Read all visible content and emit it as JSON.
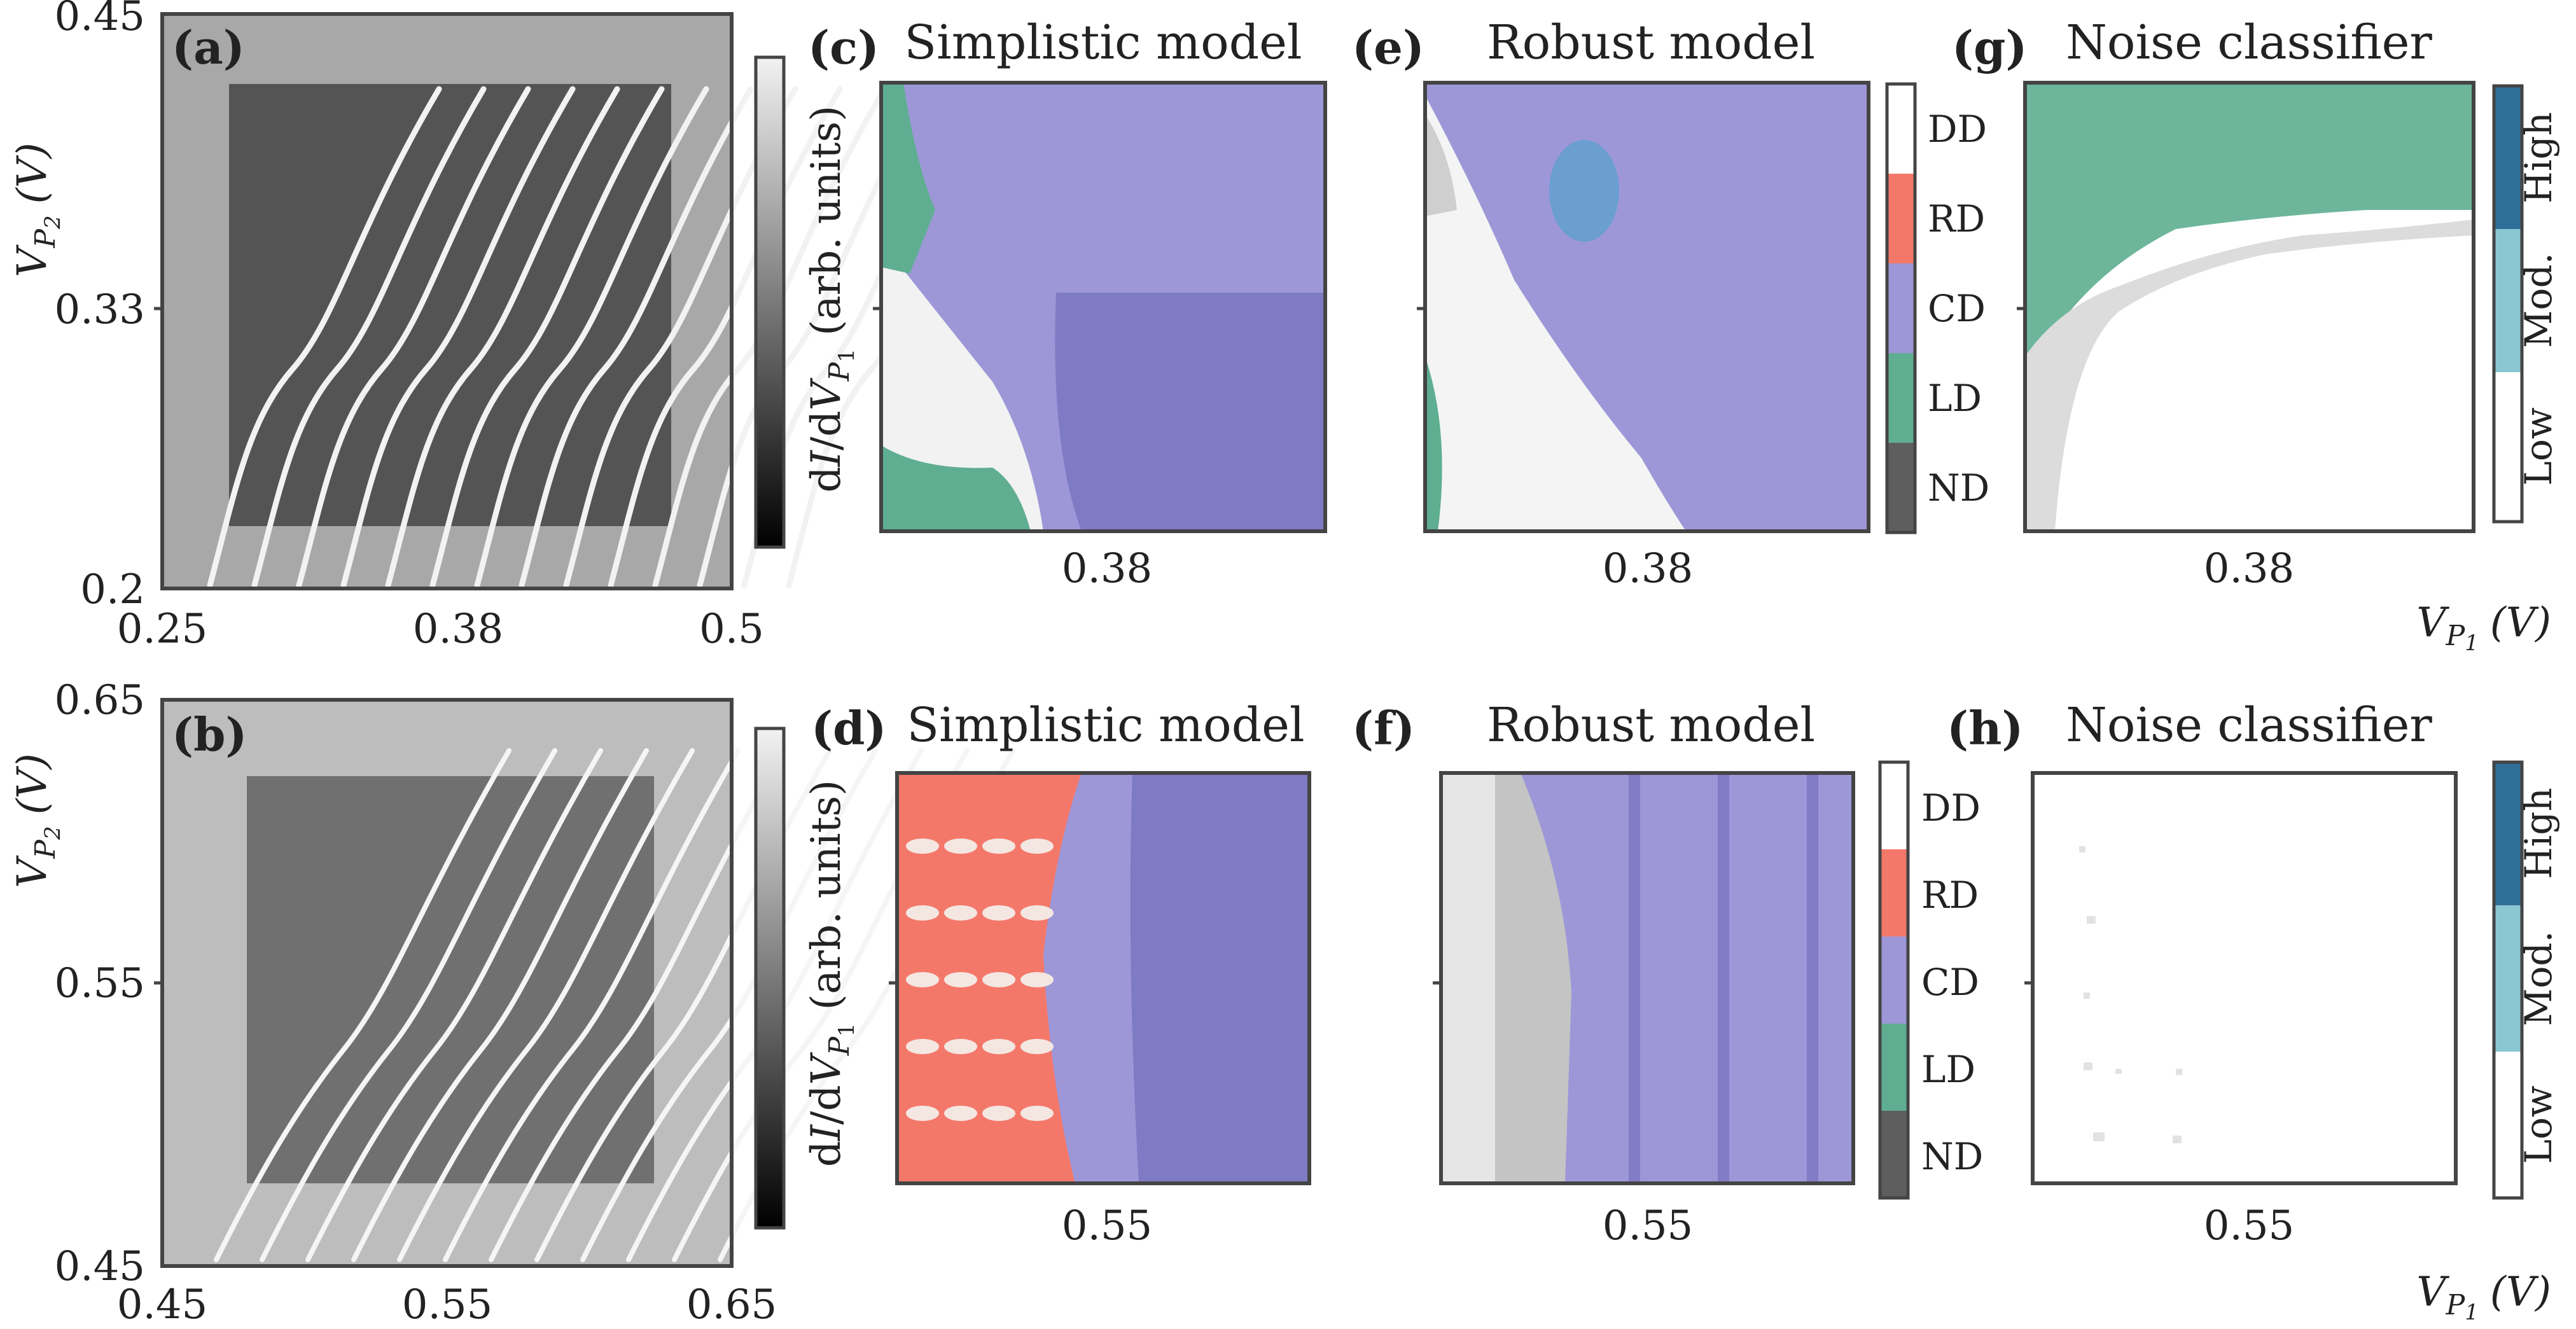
{
  "colors": {
    "DD": "#ffffff",
    "RD": "#f4786a",
    "CD": "#9d97d8",
    "CD_dark": "#7f7ac4",
    "LD": "#5fae92",
    "ND": "#5e5e5e",
    "noise_low": "#ffffff",
    "noise_mod": "#8bc6d3",
    "noise_high": "#2f6e96",
    "frame": "#444444"
  },
  "chart_data": [
    {
      "panel": "(a)",
      "type": "heatmap",
      "title": "",
      "xlabel": "",
      "ylabel": "V_P2 (V)",
      "ylabel_main": "V",
      "ylabel_sub": "P",
      "ylabel_subsub": "2",
      "ylabel_unit": "(V)",
      "x_ticks": [
        "0.25",
        "0.38",
        "0.5"
      ],
      "y_ticks": [
        "0.45",
        "0.33",
        "0.2"
      ],
      "xlim": [
        0.25,
        0.5
      ],
      "ylim": [
        0.2,
        0.45
      ],
      "colorbar_label": "dI/dV_P1 (arb. units)",
      "colorbar_label_parts": [
        "d",
        "I",
        "/d",
        "V",
        "P",
        "1",
        " (arb. units)"
      ]
    },
    {
      "panel": "(b)",
      "type": "heatmap",
      "title": "",
      "xlabel": "",
      "ylabel": "V_P2 (V)",
      "ylabel_main": "V",
      "ylabel_sub": "P",
      "ylabel_subsub": "2",
      "ylabel_unit": "(V)",
      "x_ticks": [
        "0.45",
        "0.55",
        "0.65"
      ],
      "y_ticks": [
        "0.65",
        "0.55",
        "0.45"
      ],
      "xlim": [
        0.45,
        0.65
      ],
      "ylim": [
        0.45,
        0.65
      ],
      "colorbar_label": "dI/dV_P1 (arb. units)",
      "colorbar_label_parts": [
        "d",
        "I",
        "/d",
        "V",
        "P",
        "1",
        " (arb. units)"
      ]
    },
    {
      "panel": "(c)",
      "type": "heatmap",
      "title": "Simplistic model",
      "x_ticks": [
        "0.38"
      ],
      "classes": [
        "DD",
        "RD",
        "CD",
        "LD",
        "ND"
      ]
    },
    {
      "panel": "(e)",
      "type": "heatmap",
      "title": "Robust model",
      "x_ticks": [
        "0.38"
      ],
      "classes": [
        "DD",
        "RD",
        "CD",
        "LD",
        "ND"
      ]
    },
    {
      "panel": "(g)",
      "type": "heatmap",
      "title": "Noise classifier",
      "x_ticks": [
        "0.38"
      ],
      "xlabel": "V_P1 (V)",
      "xlabel_main": "V",
      "xlabel_sub": "P",
      "xlabel_subsub": "1",
      "xlabel_unit": "(V)",
      "levels": [
        "High",
        "Mod.",
        "Low"
      ]
    },
    {
      "panel": "(d)",
      "type": "heatmap",
      "title": "Simplistic model",
      "x_ticks": [
        "0.55"
      ],
      "classes": [
        "DD",
        "RD",
        "CD",
        "LD",
        "ND"
      ]
    },
    {
      "panel": "(f)",
      "type": "heatmap",
      "title": "Robust model",
      "x_ticks": [
        "0.55"
      ],
      "classes": [
        "DD",
        "RD",
        "CD",
        "LD",
        "ND"
      ]
    },
    {
      "panel": "(h)",
      "type": "heatmap",
      "title": "Noise classifier",
      "x_ticks": [
        "0.55"
      ],
      "xlabel": "V_P1 (V)",
      "xlabel_main": "V",
      "xlabel_sub": "P",
      "xlabel_subsub": "1",
      "xlabel_unit": "(V)",
      "levels": [
        "High",
        "Mod.",
        "Low"
      ]
    }
  ],
  "class_legend": [
    "DD",
    "RD",
    "CD",
    "LD",
    "ND"
  ],
  "noise_legend": [
    "High",
    "Mod.",
    "Low"
  ]
}
